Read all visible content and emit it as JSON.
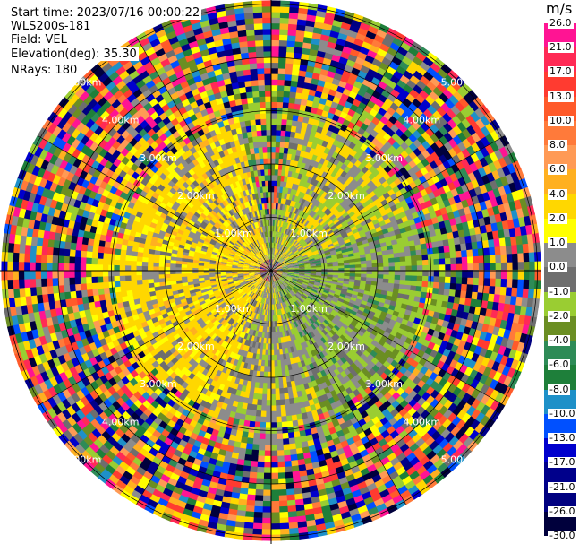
{
  "info": {
    "start_time": "Start time: 2023/07/16 00:00:22",
    "instrument": "WLS200s-181",
    "field": "Field: VEL",
    "elevation": "Elevation(deg): 35.30",
    "nrays": "NRays: 180"
  },
  "range_labels": [
    "1.00km",
    "2.00km",
    "3.00km",
    "4.00km",
    "5.00km"
  ],
  "colorbar": {
    "unit": "m/s",
    "ticks": [
      "26.0",
      "21.0",
      "17.0",
      "13.0",
      "10.0",
      "8.0",
      "6.0",
      "4.0",
      "2.0",
      "1.0",
      "0.0",
      "-1.0",
      "-2.0",
      "-4.0",
      "-6.0",
      "-8.0",
      "-10.0",
      "-13.0",
      "-17.0",
      "-21.0",
      "-26.0",
      "-30.0"
    ],
    "colors": [
      "#ff1493",
      "#ff2a55",
      "#ff3b30",
      "#ff5a2a",
      "#ff7a3a",
      "#ff9a55",
      "#ffb020",
      "#ffd700",
      "#ffff00",
      "#8c8c8c",
      "#6e6e6e",
      "#9acd32",
      "#6b8e23",
      "#2e8b57",
      "#1e7f3a",
      "#1e90c8",
      "#0050ff",
      "#0000cd",
      "#00008b",
      "#000080",
      "#00003c"
    ]
  }
}
